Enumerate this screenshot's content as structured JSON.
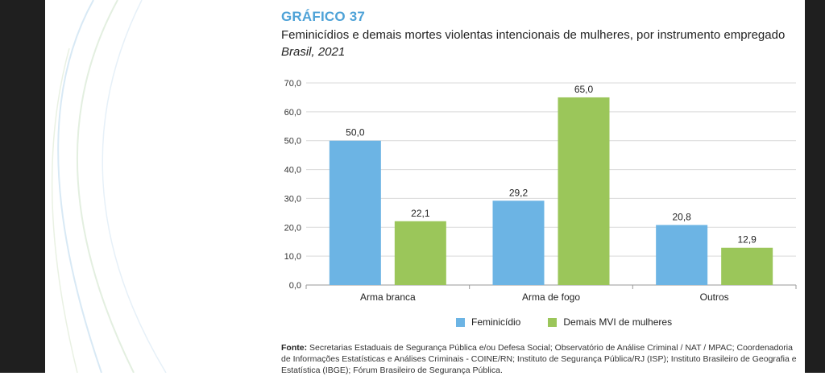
{
  "header": {
    "label": "GRÁFICO 37",
    "title": "Feminicídios e demais mortes violentas intencionais de mulheres, por instrumento empregado",
    "subtitle": "Brasil, 2021"
  },
  "colors": {
    "label": "#4ea2d7",
    "feminicidio": "#6cb4e4",
    "demais": "#9bc65a"
  },
  "chart_data": {
    "type": "bar",
    "categories": [
      "Arma branca",
      "Arma de fogo",
      "Outros"
    ],
    "series": [
      {
        "name": "Feminicídio",
        "values": [
          50.0,
          29.2,
          20.8
        ],
        "labels": [
          "50,0",
          "29,2",
          "20,8"
        ]
      },
      {
        "name": "Demais MVI de mulheres",
        "values": [
          22.1,
          65.0,
          12.9
        ],
        "labels": [
          "22,1",
          "65,0",
          "12,9"
        ]
      }
    ],
    "ylim": [
      0,
      70
    ],
    "yticks": [
      0,
      10,
      20,
      30,
      40,
      50,
      60,
      70
    ],
    "ytick_labels": [
      "0,0",
      "10,0",
      "20,0",
      "30,0",
      "40,0",
      "50,0",
      "60,0",
      "70,0"
    ],
    "grid": true,
    "legend": "bottom"
  },
  "source": {
    "prefix": "Fonte:",
    "text": " Secretarias Estaduais de Segurança Pública e/ou Defesa Social; Observatório de Análise Criminal / NAT / MPAC; Coordenadoria de Informações Estatísticas e Análises Criminais - COINE/RN; Instituto de Segurança Pública/RJ (ISP); Instituto Brasileiro de Geografia e Estatística (IBGE); Fórum Brasileiro de Segurança Pública."
  }
}
